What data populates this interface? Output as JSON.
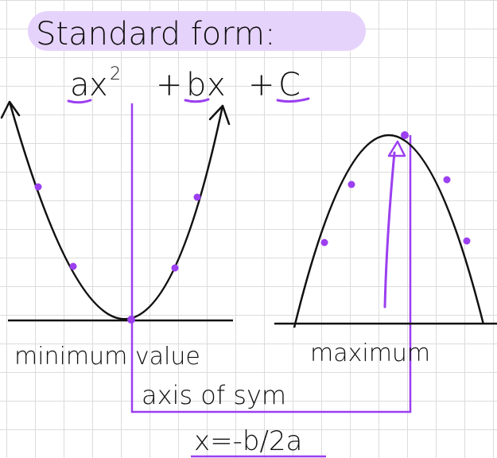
{
  "title": "Standard form:",
  "equation": {
    "a": "a",
    "x2": "x",
    "sup": "2",
    "plus1": "+",
    "b": "b",
    "x": "x",
    "plus2": "+",
    "c": "C"
  },
  "left_label": "minimum value",
  "right_label": "maximum",
  "axis_label": "axis of sym",
  "formula": "x=-b/2a",
  "colors": {
    "purple": "#9b3ff0",
    "highlight": "#e6d3fb",
    "ink": "#111111"
  }
}
